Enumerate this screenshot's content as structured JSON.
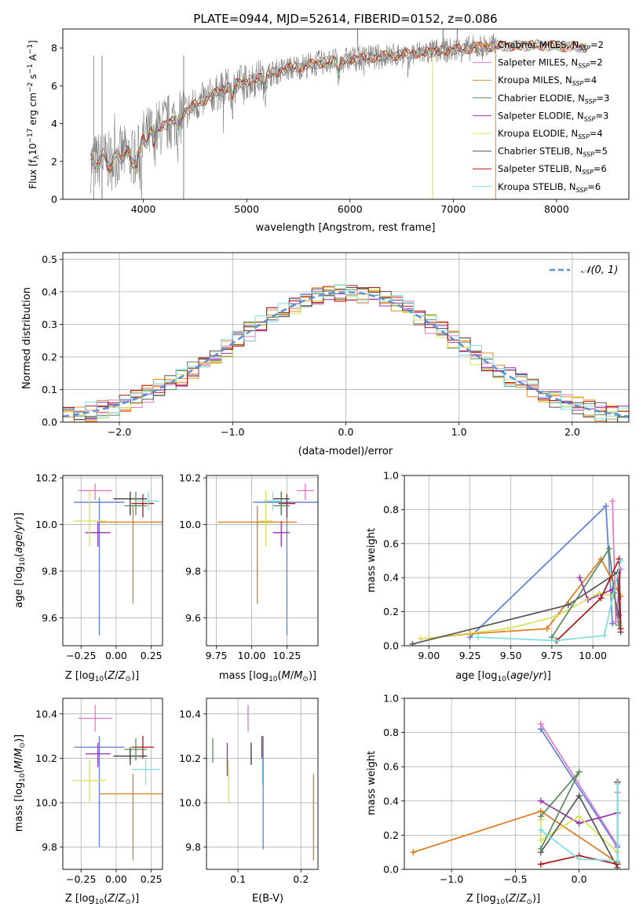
{
  "chart_data": [
    {
      "id": "spectrum",
      "type": "line",
      "title": "PLATE=0944, MJD=52614, FIBERID=0152, z=0.086",
      "xlabel": "wavelength [Angstrom, rest frame]",
      "ylabel": "Flux [f_λ10^-17 erg cm^-2 s^-1 A^-1]",
      "xlim": [
        3220,
        8700
      ],
      "ylim": [
        0,
        9
      ],
      "xticks": [
        4000,
        5000,
        6000,
        7000,
        8000
      ],
      "yticks": [
        0,
        2,
        4,
        6,
        8
      ],
      "grid": false,
      "legend_position": "top-right",
      "series": [
        {
          "name": "Chabrier MILES, N_SSP=2",
          "color": "#ff7f0e"
        },
        {
          "name": "Salpeter MILES, N_SSP=2",
          "color": "#e377c2"
        },
        {
          "name": "Kroupa MILES, N_SSP=4",
          "color": "#d98d2e"
        },
        {
          "name": "Chabrier ELODIE, N_SSP=3",
          "color": "#5a8a5a"
        },
        {
          "name": "Salpeter ELODIE, N_SSP=3",
          "color": "#9a2fb0"
        },
        {
          "name": "Kroupa ELODIE, N_SSP=4",
          "color": "#d9e05a"
        },
        {
          "name": "Chabrier STELIB, N_SSP=5",
          "color": "#555555"
        },
        {
          "name": "Salpeter STELIB, N_SSP=6",
          "color": "#b01717"
        },
        {
          "name": "Kroupa STELIB, N_SSP=6",
          "color": "#7fdfe0"
        }
      ],
      "data_color": "#808080",
      "x": [
        3500,
        3600,
        3700,
        3800,
        3900,
        4000,
        4100,
        4200,
        4300,
        4400,
        4500,
        4600,
        4700,
        4800,
        4900,
        5000,
        5200,
        5400,
        5600,
        5800,
        6000,
        6200,
        6400,
        6600,
        6800,
        7000,
        7200,
        7400,
        7600,
        7800,
        8000,
        8200
      ],
      "model_y": [
        1.9,
        2.1,
        2.0,
        2.4,
        2.2,
        3.2,
        3.6,
        3.9,
        4.2,
        4.6,
        5.0,
        5.3,
        5.6,
        5.9,
        6.1,
        6.2,
        6.6,
        6.9,
        7.1,
        7.3,
        7.4,
        7.5,
        7.6,
        7.7,
        7.8,
        7.9,
        8.0,
        8.1,
        8.1,
        8.15,
        8.1,
        8.05
      ]
    },
    {
      "id": "residuals",
      "type": "step",
      "xlabel": "(data-model)/error",
      "ylabel": "Normed distribution",
      "xlim": [
        -2.5,
        2.5
      ],
      "ylim": [
        0,
        0.52
      ],
      "xticks": [
        -2,
        -1,
        0,
        1,
        2
      ],
      "yticks": [
        0.0,
        0.1,
        0.2,
        0.3,
        0.4,
        0.5
      ],
      "grid": true,
      "legend_position": "top-right",
      "reference_curve": "N(0,1)",
      "bin_centers": [
        -2.4,
        -2.2,
        -2.0,
        -1.8,
        -1.6,
        -1.4,
        -1.2,
        -1.0,
        -0.8,
        -0.6,
        -0.4,
        -0.2,
        0.0,
        0.2,
        0.4,
        0.6,
        0.8,
        1.0,
        1.2,
        1.4,
        1.6,
        1.8,
        2.0,
        2.2,
        2.4
      ],
      "density": [
        0.025,
        0.035,
        0.055,
        0.08,
        0.12,
        0.16,
        0.2,
        0.26,
        0.3,
        0.34,
        0.37,
        0.39,
        0.4,
        0.4,
        0.38,
        0.34,
        0.3,
        0.24,
        0.2,
        0.15,
        0.11,
        0.08,
        0.05,
        0.035,
        0.022
      ]
    },
    {
      "id": "age-vs-Z",
      "type": "errorbar",
      "xlabel": "Z [log10(Z/Z_⊙)]",
      "ylabel": "age [log10(age/yr)]",
      "xlim": [
        -0.38,
        0.33
      ],
      "ylim": [
        9.48,
        10.21
      ],
      "xticks": [
        -0.25,
        0.0,
        0.25
      ],
      "yticks": [
        9.6,
        9.8,
        10.0,
        10.2
      ],
      "grid": true,
      "points": [
        {
          "x": -0.12,
          "y": 10.095,
          "xerr": 0.18,
          "yerr_lo": 0.57,
          "yerr_hi": 0.02,
          "color": "#5b7fe0"
        },
        {
          "x": 0.12,
          "y": 10.01,
          "xerr": 0.24,
          "yerr_lo": 0.35,
          "yerr_hi": 0.07,
          "color": "#e07a1f"
        },
        {
          "x": -0.15,
          "y": 10.145,
          "xerr": 0.12,
          "yerr_lo": 0.04,
          "yerr_hi": 0.03,
          "color": "#e377c2"
        },
        {
          "x": -0.13,
          "y": 9.965,
          "xerr": 0.09,
          "yerr_lo": 0.06,
          "yerr_hi": 0.05,
          "color": "#9a2fb0"
        },
        {
          "x": -0.19,
          "y": 10.015,
          "xerr": 0.12,
          "yerr_lo": 0.11,
          "yerr_hi": 0.13,
          "color": "#d9e05a"
        },
        {
          "x": 0.1,
          "y": 10.11,
          "xerr": 0.12,
          "yerr_lo": 0.07,
          "yerr_hi": 0.03,
          "color": "#333333"
        },
        {
          "x": 0.19,
          "y": 10.09,
          "xerr": 0.08,
          "yerr_lo": 0.06,
          "yerr_hi": 0.04,
          "color": "#b01717"
        },
        {
          "x": 0.14,
          "y": 10.08,
          "xerr": 0.08,
          "yerr_lo": 0.04,
          "yerr_hi": 0.06,
          "color": "#5a8a5a"
        },
        {
          "x": 0.23,
          "y": 10.1,
          "xerr": 0.08,
          "yerr_lo": 0.04,
          "yerr_hi": 0.04,
          "color": "#7fdfe0"
        }
      ]
    },
    {
      "id": "age-vs-mass",
      "type": "errorbar",
      "xlabel": "mass [log10(M/M_⊙)]",
      "ylabel": "",
      "xlim": [
        9.68,
        10.47
      ],
      "ylim": [
        9.48,
        10.21
      ],
      "xticks": [
        9.75,
        10.0,
        10.25
      ],
      "yticks": [
        9.6,
        9.8,
        10.0,
        10.2
      ],
      "grid": true,
      "points": [
        {
          "x": 10.25,
          "y": 10.095,
          "xerr": 0.24,
          "yerr_lo": 0.57,
          "yerr_hi": 0.02,
          "color": "#5b7fe0"
        },
        {
          "x": 10.04,
          "y": 10.01,
          "xerr": 0.28,
          "yerr_lo": 0.35,
          "yerr_hi": 0.07,
          "color": "#e07a1f"
        },
        {
          "x": 10.38,
          "y": 10.145,
          "xerr": 0.06,
          "yerr_lo": 0.04,
          "yerr_hi": 0.03,
          "color": "#e377c2"
        },
        {
          "x": 10.21,
          "y": 9.965,
          "xerr": 0.06,
          "yerr_lo": 0.06,
          "yerr_hi": 0.05,
          "color": "#9a2fb0"
        },
        {
          "x": 10.1,
          "y": 10.015,
          "xerr": 0.05,
          "yerr_lo": 0.11,
          "yerr_hi": 0.13,
          "color": "#d9e05a"
        },
        {
          "x": 10.21,
          "y": 10.11,
          "xerr": 0.06,
          "yerr_lo": 0.07,
          "yerr_hi": 0.03,
          "color": "#333333"
        },
        {
          "x": 10.25,
          "y": 10.09,
          "xerr": 0.06,
          "yerr_lo": 0.06,
          "yerr_hi": 0.04,
          "color": "#b01717"
        },
        {
          "x": 10.21,
          "y": 10.08,
          "xerr": 0.06,
          "yerr_lo": 0.04,
          "yerr_hi": 0.06,
          "color": "#5a8a5a"
        },
        {
          "x": 10.15,
          "y": 10.1,
          "xerr": 0.06,
          "yerr_lo": 0.04,
          "yerr_hi": 0.04,
          "color": "#7fdfe0"
        }
      ]
    },
    {
      "id": "weight-vs-age",
      "type": "line",
      "xlabel": "age [log10(age/yr)]",
      "ylabel": "mass weight",
      "xlim": [
        8.85,
        10.22
      ],
      "ylim": [
        0,
        1
      ],
      "xticks": [
        9.0,
        9.25,
        9.5,
        9.75,
        10.0
      ],
      "yticks": [
        0.0,
        0.2,
        0.4,
        0.6,
        0.8,
        1.0
      ],
      "grid": true,
      "series": [
        {
          "color": "#5b7fe0",
          "x": [
            9.25,
            10.08,
            10.12
          ],
          "y": [
            0.05,
            0.82,
            0.13
          ]
        },
        {
          "color": "#e07a1f",
          "x": [
            8.95,
            9.25,
            9.72,
            10.05,
            10.17
          ],
          "y": [
            0.04,
            0.07,
            0.1,
            0.51,
            0.29
          ]
        },
        {
          "color": "#e377c2",
          "x": [
            10.12,
            10.14,
            10.17
          ],
          "y": [
            0.85,
            0.14,
            0.45
          ]
        },
        {
          "color": "#9a2fb0",
          "x": [
            9.92,
            9.97,
            10.12,
            10.16
          ],
          "y": [
            0.4,
            0.27,
            0.33,
            0.18
          ]
        },
        {
          "color": "#d9e05a",
          "x": [
            8.95,
            9.48,
            9.77,
            10.04,
            10.12
          ],
          "y": [
            0.04,
            0.1,
            0.17,
            0.31,
            0.29
          ]
        },
        {
          "color": "#555555",
          "x": [
            8.9,
            9.85,
            10.15,
            10.17
          ],
          "y": [
            0.01,
            0.24,
            0.43,
            0.08
          ]
        },
        {
          "color": "#b01717",
          "x": [
            9.78,
            10.05,
            10.16,
            10.17
          ],
          "y": [
            0.03,
            0.28,
            0.51,
            0.1
          ]
        },
        {
          "color": "#5a8a5a",
          "x": [
            9.75,
            10.1,
            10.13,
            10.16
          ],
          "y": [
            0.05,
            0.57,
            0.31,
            0.12
          ]
        },
        {
          "color": "#7fdfe0",
          "x": [
            9.3,
            9.77,
            10.07,
            10.17
          ],
          "y": [
            0.05,
            0.03,
            0.06,
            0.5
          ]
        }
      ]
    },
    {
      "id": "mass-vs-Z",
      "type": "errorbar",
      "xlabel": "Z [log10(Z/Z_⊙)]",
      "ylabel": "mass [log10(M/M_⊙)]",
      "xlim": [
        -0.38,
        0.33
      ],
      "ylim": [
        9.7,
        10.47
      ],
      "xticks": [
        -0.25,
        0.0,
        0.25
      ],
      "yticks": [
        9.8,
        10.0,
        10.2,
        10.4
      ],
      "grid": true,
      "points": [
        {
          "x": -0.12,
          "y": 10.25,
          "xerr": 0.18,
          "yerr_lo": 0.45,
          "yerr_hi": 0.05,
          "color": "#5b7fe0"
        },
        {
          "x": 0.12,
          "y": 10.04,
          "xerr": 0.24,
          "yerr_lo": 0.3,
          "yerr_hi": 0.09,
          "color": "#e07a1f"
        },
        {
          "x": -0.15,
          "y": 10.38,
          "xerr": 0.12,
          "yerr_lo": 0.06,
          "yerr_hi": 0.06,
          "color": "#e377c2"
        },
        {
          "x": -0.13,
          "y": 10.22,
          "xerr": 0.09,
          "yerr_lo": 0.06,
          "yerr_hi": 0.05,
          "color": "#9a2fb0"
        },
        {
          "x": -0.19,
          "y": 10.1,
          "xerr": 0.12,
          "yerr_lo": 0.1,
          "yerr_hi": 0.09,
          "color": "#d9e05a"
        },
        {
          "x": 0.1,
          "y": 10.21,
          "xerr": 0.12,
          "yerr_lo": 0.04,
          "yerr_hi": 0.04,
          "color": "#333333"
        },
        {
          "x": 0.19,
          "y": 10.25,
          "xerr": 0.08,
          "yerr_lo": 0.05,
          "yerr_hi": 0.05,
          "color": "#b01717"
        },
        {
          "x": 0.14,
          "y": 10.24,
          "xerr": 0.08,
          "yerr_lo": 0.05,
          "yerr_hi": 0.05,
          "color": "#5a8a5a"
        },
        {
          "x": 0.21,
          "y": 10.15,
          "xerr": 0.1,
          "yerr_lo": 0.07,
          "yerr_hi": 0.05,
          "color": "#7fdfe0"
        }
      ]
    },
    {
      "id": "mass-vs-EBV",
      "type": "errorbar",
      "xlabel": "E(B-V)",
      "ylabel": "",
      "xlim": [
        0.05,
        0.227
      ],
      "ylim": [
        9.7,
        10.47
      ],
      "xticks": [
        0.1,
        0.2
      ],
      "yticks": [
        9.8,
        10.0,
        10.2,
        10.4
      ],
      "grid": true,
      "points": [
        {
          "x": 0.06,
          "y": 10.22,
          "yerr_lo": 0.04,
          "yerr_hi": 0.07,
          "color": "#5a8a5a"
        },
        {
          "x": 0.083,
          "y": 10.22,
          "yerr_lo": 0.1,
          "yerr_hi": 0.05,
          "color": "#9a2fb0"
        },
        {
          "x": 0.085,
          "y": 10.1,
          "yerr_lo": 0.1,
          "yerr_hi": 0.09,
          "color": "#d9e05a"
        },
        {
          "x": 0.116,
          "y": 10.38,
          "yerr_lo": 0.06,
          "yerr_hi": 0.06,
          "color": "#e377c2"
        },
        {
          "x": 0.121,
          "y": 10.21,
          "yerr_lo": 0.04,
          "yerr_hi": 0.06,
          "color": "#333333"
        },
        {
          "x": 0.138,
          "y": 10.25,
          "yerr_lo": 0.05,
          "yerr_hi": 0.05,
          "color": "#b01717"
        },
        {
          "x": 0.139,
          "y": 10.16,
          "yerr_lo": 0.08,
          "yerr_hi": 0.04,
          "color": "#7fdfe0"
        },
        {
          "x": 0.14,
          "y": 10.25,
          "yerr_lo": 0.46,
          "yerr_hi": 0.05,
          "color": "#5b7fe0"
        },
        {
          "x": 0.22,
          "y": 10.04,
          "yerr_lo": 0.3,
          "yerr_hi": 0.09,
          "color": "#e07a1f"
        }
      ]
    },
    {
      "id": "weight-vs-Z",
      "type": "line",
      "xlabel": "Z [log10(Z/Z_⊙)]",
      "ylabel": "mass weight",
      "xlim": [
        -1.37,
        0.39
      ],
      "ylim": [
        0,
        1
      ],
      "xticks": [
        -1.0,
        -0.5,
        0.0
      ],
      "yticks": [
        0.0,
        0.2,
        0.4,
        0.6,
        0.8,
        1.0
      ],
      "grid": true,
      "series": [
        {
          "color": "#5b7fe0",
          "x": [
            -0.3,
            0.3
          ],
          "y": [
            0.82,
            0.13
          ]
        },
        {
          "color": "#e377c2",
          "x": [
            -0.3,
            0.3,
            0.3
          ],
          "y": [
            0.85,
            0.14,
            0.45
          ]
        },
        {
          "color": "#e07a1f",
          "x": [
            -1.3,
            -0.3,
            0.3,
            0.3
          ],
          "y": [
            0.1,
            0.34,
            0.04,
            0.51
          ]
        },
        {
          "color": "#9a2fb0",
          "x": [
            -0.3,
            0.0,
            0.3
          ],
          "y": [
            0.4,
            0.27,
            0.33
          ]
        },
        {
          "color": "#d9e05a",
          "x": [
            -0.3,
            -0.3,
            0.0,
            0.3
          ],
          "y": [
            0.29,
            0.17,
            0.31,
            0.1
          ]
        },
        {
          "color": "#555555",
          "x": [
            -0.3,
            0.0,
            0.3
          ],
          "y": [
            0.1,
            0.43,
            0.01
          ]
        },
        {
          "color": "#b01717",
          "x": [
            -0.3,
            0.0,
            0.3,
            0.3
          ],
          "y": [
            0.03,
            0.08,
            0.03,
            0.51
          ]
        },
        {
          "color": "#5a8a5a",
          "x": [
            -0.3,
            0.0,
            -0.3
          ],
          "y": [
            0.12,
            0.57,
            0.31
          ]
        },
        {
          "color": "#7fdfe0",
          "x": [
            -0.3,
            0.0,
            0.3,
            0.3
          ],
          "y": [
            0.23,
            0.06,
            0.05,
            0.5
          ]
        }
      ]
    }
  ]
}
